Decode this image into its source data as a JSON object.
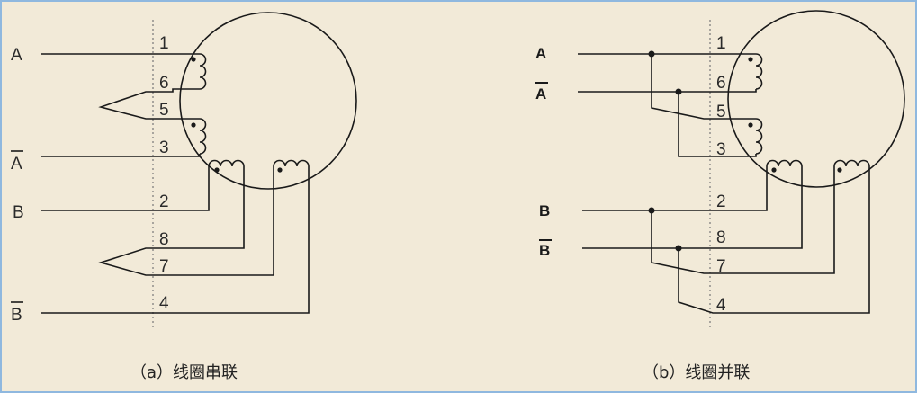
{
  "diagram_a": {
    "caption": "（a）线圈串联",
    "left_labels": {
      "a": "A",
      "a_bar": "A",
      "b": "B",
      "b_bar": "B"
    },
    "pins": {
      "p1": "1",
      "p6": "6",
      "p5": "5",
      "p3": "3",
      "p2": "2",
      "p8": "8",
      "p7": "7",
      "p4": "4"
    }
  },
  "diagram_b": {
    "caption": "（b）线圈并联",
    "left_labels": {
      "a": "A",
      "a_bar": "A",
      "b": "B",
      "b_bar": "B"
    },
    "pins": {
      "p1": "1",
      "p6": "6",
      "p5": "5",
      "p3": "3",
      "p2": "2",
      "p8": "8",
      "p7": "7",
      "p4": "4"
    }
  },
  "colors": {
    "line": "#1a1a1a",
    "background": "#f2ead8",
    "border": "#8fb8df"
  }
}
